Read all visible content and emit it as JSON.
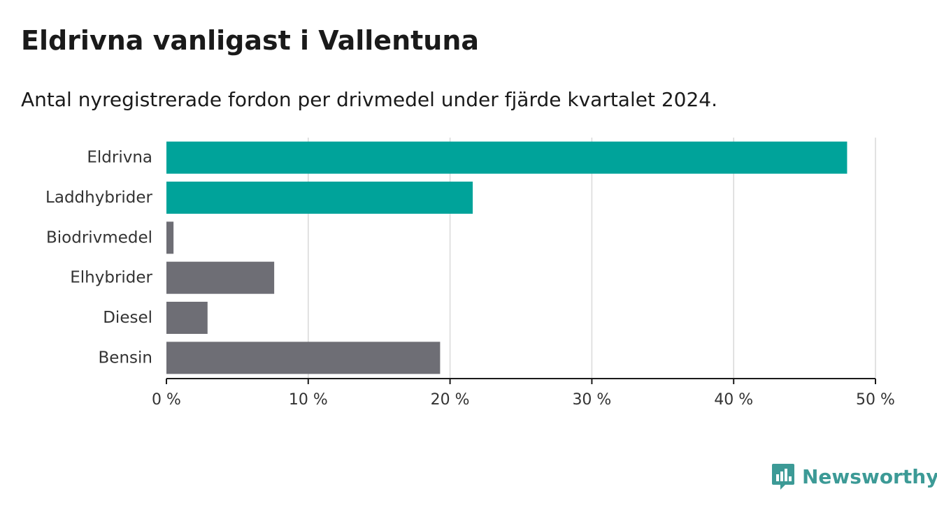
{
  "header": {
    "title": "Eldrivna vanligast i Vallentuna",
    "subtitle": "Antal nyregistrerade fordon per drivmedel under fjärde kvartalet 2024."
  },
  "chart_data": {
    "type": "bar",
    "orientation": "horizontal",
    "categories": [
      "Eldrivna",
      "Laddhybrider",
      "Biodrivmedel",
      "Elhybrider",
      "Diesel",
      "Bensin"
    ],
    "values": [
      48.0,
      21.6,
      0.5,
      7.6,
      2.9,
      19.3
    ],
    "colors": [
      "#00a39a",
      "#00a39a",
      "#6e6e75",
      "#6e6e75",
      "#6e6e75",
      "#6e6e75"
    ],
    "xlim": [
      0,
      50
    ],
    "xticks": [
      0,
      10,
      20,
      30,
      40,
      50
    ],
    "xtick_labels": [
      "0 %",
      "10 %",
      "20 %",
      "30 %",
      "40 %",
      "50 %"
    ],
    "grid": true,
    "xlabel": "",
    "ylabel": ""
  },
  "brand": {
    "name": "Newsworthy",
    "icon": "newsworthy-logo-icon",
    "color": "#3c9a96"
  }
}
